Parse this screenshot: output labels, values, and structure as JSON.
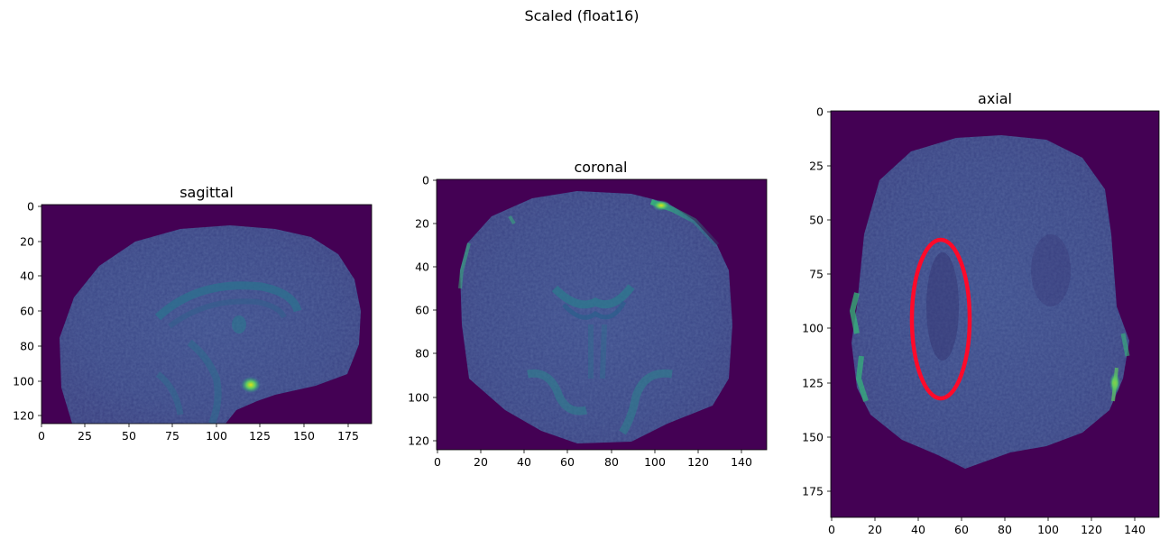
{
  "figure": {
    "suptitle": "Scaled (float16)"
  },
  "panels": [
    {
      "id": "sagittal",
      "title": "sagittal",
      "x_ticks": [
        "0",
        "25",
        "50",
        "75",
        "100",
        "125",
        "150",
        "175"
      ],
      "y_ticks": [
        "0",
        "20",
        "40",
        "60",
        "80",
        "100",
        "120"
      ]
    },
    {
      "id": "coronal",
      "title": "coronal",
      "x_ticks": [
        "0",
        "20",
        "40",
        "60",
        "80",
        "100",
        "120",
        "140"
      ],
      "y_ticks": [
        "0",
        "20",
        "40",
        "60",
        "80",
        "100",
        "120"
      ]
    },
    {
      "id": "axial",
      "title": "axial",
      "x_ticks": [
        "0",
        "20",
        "40",
        "60",
        "80",
        "100",
        "120",
        "140"
      ],
      "y_ticks": [
        "0",
        "25",
        "50",
        "75",
        "100",
        "125",
        "150",
        "175"
      ]
    }
  ],
  "colors": {
    "background_voxel": "#440154",
    "tissue_dark": "#3b4a8a",
    "tissue_mid": "#31688e",
    "highlight": "#c8e020",
    "annotation": "#ff0a2a"
  },
  "annotation": {
    "shape": "ellipse",
    "panel": "axial",
    "color": "red"
  }
}
